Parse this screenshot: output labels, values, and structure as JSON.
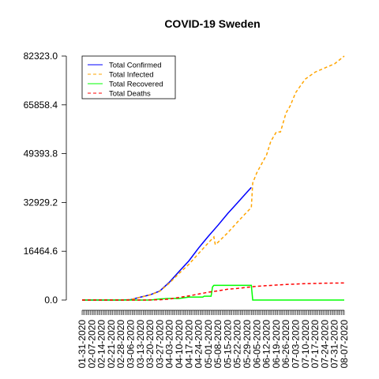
{
  "chart_data": {
    "type": "line",
    "title": "COVID-19 Sweden",
    "xlabel": "",
    "ylabel": "",
    "ylim": [
      0,
      82323
    ],
    "y_ticks": [
      "0.0",
      "16464.6",
      "32929.2",
      "49393.8",
      "65858.4",
      "82323.0"
    ],
    "y_tick_values": [
      0,
      16464.6,
      32929.2,
      49393.8,
      65858.4,
      82323.0
    ],
    "x_start": "01-31-2020",
    "x_end": "08-07-2020",
    "x_tick_labels": [
      "01-31-2020",
      "02-07-2020",
      "02-14-2020",
      "02-21-2020",
      "02-28-2020",
      "03-06-2020",
      "03-13-2020",
      "03-20-2020",
      "03-27-2020",
      "04-03-2020",
      "04-10-2020",
      "04-17-2020",
      "04-24-2020",
      "05-01-2020",
      "05-08-2020",
      "05-15-2020",
      "05-22-2020",
      "05-29-2020",
      "06-05-2020",
      "06-12-2020",
      "06-19-2020",
      "06-26-2020",
      "07-03-2020",
      "07-10-2020",
      "07-17-2020",
      "07-24-2020",
      "07-31-2020",
      "08-07-2020"
    ],
    "grid": false,
    "legend_position": "top-left",
    "series": [
      {
        "name": "Total Confirmed",
        "color": "#0000ff",
        "dash": "solid",
        "points": [
          [
            "01-31-2020",
            1
          ],
          [
            "02-28-2020",
            2
          ],
          [
            "03-06-2020",
            140
          ],
          [
            "03-13-2020",
            960
          ],
          [
            "03-20-2020",
            1760
          ],
          [
            "03-27-2020",
            3050
          ],
          [
            "04-03-2020",
            6050
          ],
          [
            "04-10-2020",
            9680
          ],
          [
            "04-17-2020",
            13220
          ],
          [
            "04-24-2020",
            17570
          ],
          [
            "05-01-2020",
            21520
          ],
          [
            "05-08-2020",
            25260
          ],
          [
            "05-15-2020",
            29210
          ],
          [
            "05-22-2020",
            32810
          ],
          [
            "05-29-2020",
            36480
          ],
          [
            "06-01-2020",
            38000
          ]
        ]
      },
      {
        "name": "Total Infected",
        "color": "#ffa500",
        "dash": "dashed",
        "points": [
          [
            "01-31-2020",
            1
          ],
          [
            "02-28-2020",
            2
          ],
          [
            "03-06-2020",
            140
          ],
          [
            "03-13-2020",
            950
          ],
          [
            "03-20-2020",
            1730
          ],
          [
            "03-27-2020",
            2960
          ],
          [
            "04-03-2020",
            5740
          ],
          [
            "04-10-2020",
            9050
          ],
          [
            "04-17-2020",
            12070
          ],
          [
            "04-24-2020",
            15720
          ],
          [
            "05-01-2020",
            19300
          ],
          [
            "05-05-2020",
            21300
          ],
          [
            "05-06-2020",
            18700
          ],
          [
            "05-08-2020",
            19500
          ],
          [
            "05-15-2020",
            22700
          ],
          [
            "05-22-2020",
            26300
          ],
          [
            "05-29-2020",
            29800
          ],
          [
            "06-01-2020",
            31200
          ],
          [
            "06-02-2020",
            39500
          ],
          [
            "06-05-2020",
            43000
          ],
          [
            "06-12-2020",
            49000
          ],
          [
            "06-15-2020",
            53500
          ],
          [
            "06-19-2020",
            56700
          ],
          [
            "06-22-2020",
            56700
          ],
          [
            "06-26-2020",
            63100
          ],
          [
            "06-29-2020",
            65500
          ],
          [
            "07-03-2020",
            70000
          ],
          [
            "07-06-2020",
            72000
          ],
          [
            "07-10-2020",
            74600
          ],
          [
            "07-17-2020",
            76900
          ],
          [
            "07-24-2020",
            78300
          ],
          [
            "07-31-2020",
            79700
          ],
          [
            "08-07-2020",
            82323
          ]
        ]
      },
      {
        "name": "Total Recovered",
        "color": "#00ff00",
        "dash": "solid",
        "points": [
          [
            "01-31-2020",
            0
          ],
          [
            "03-20-2020",
            0
          ],
          [
            "03-27-2020",
            380
          ],
          [
            "04-03-2020",
            550
          ],
          [
            "04-10-2020",
            550
          ],
          [
            "04-17-2020",
            1000
          ],
          [
            "04-24-2020",
            1000
          ],
          [
            "04-27-2020",
            1000
          ],
          [
            "04-28-2020",
            1300
          ],
          [
            "05-01-2020",
            1300
          ],
          [
            "05-03-2020",
            1300
          ],
          [
            "05-04-2020",
            4400
          ],
          [
            "05-05-2020",
            4970
          ],
          [
            "05-29-2020",
            4970
          ],
          [
            "06-01-2020",
            4970
          ],
          [
            "06-02-2020",
            0
          ],
          [
            "08-07-2020",
            0
          ]
        ]
      },
      {
        "name": "Total Deaths",
        "color": "#ff0000",
        "dash": "dashed",
        "points": [
          [
            "01-31-2020",
            0
          ],
          [
            "03-13-2020",
            0
          ],
          [
            "03-20-2020",
            20
          ],
          [
            "03-27-2020",
            110
          ],
          [
            "04-03-2020",
            330
          ],
          [
            "04-10-2020",
            870
          ],
          [
            "04-17-2020",
            1400
          ],
          [
            "04-24-2020",
            2020
          ],
          [
            "05-01-2020",
            2650
          ],
          [
            "05-08-2020",
            3100
          ],
          [
            "05-15-2020",
            3650
          ],
          [
            "05-22-2020",
            3920
          ],
          [
            "05-29-2020",
            4280
          ],
          [
            "06-05-2020",
            4650
          ],
          [
            "06-12-2020",
            4860
          ],
          [
            "06-19-2020",
            5050
          ],
          [
            "06-26-2020",
            5250
          ],
          [
            "07-03-2020",
            5400
          ],
          [
            "07-10-2020",
            5520
          ],
          [
            "07-17-2020",
            5600
          ],
          [
            "07-24-2020",
            5680
          ],
          [
            "07-31-2020",
            5720
          ],
          [
            "08-07-2020",
            5770
          ]
        ]
      }
    ]
  }
}
